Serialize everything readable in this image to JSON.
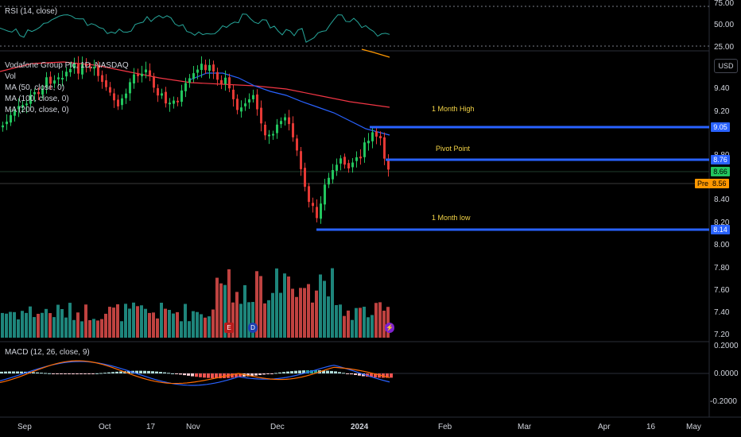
{
  "panes": {
    "rsi": {
      "title": "RSI (14, close)",
      "axis": [
        "75.00",
        "50.00",
        "25.00"
      ]
    },
    "price": {
      "symbol": "Vodafone Group Plc, 1D, NASDAQ",
      "indicators": [
        "Vol",
        "MA (50, close, 0)",
        "MA (100, close, 0)",
        "MA (200, close, 0)"
      ],
      "currency": "USD",
      "axis": [
        "9.40",
        "9.20",
        "8.80",
        "8.40",
        "8.20",
        "8.00",
        "7.80",
        "7.60",
        "7.40",
        "7.20"
      ],
      "annotations": {
        "high": "1 Month High",
        "pivot": "Pivot Point",
        "low": "1 Month low"
      },
      "levels": {
        "high": "9.05",
        "pivot": "8.76",
        "last": "8.66",
        "pre": "8.56",
        "low": "8.14"
      },
      "pre_label": "Pre",
      "events": [
        "E",
        "D",
        "⚡"
      ]
    },
    "macd": {
      "title": "MACD (12, 26, close, 9)",
      "axis": [
        "0.2000",
        "0.0000",
        "-0.2000"
      ]
    }
  },
  "time_axis": [
    "Sep",
    "Oct",
    "17",
    "Nov",
    "Dec",
    "2024",
    "Feb",
    "Mar",
    "Apr",
    "16",
    "May"
  ],
  "colors": {
    "up": "#26a69a",
    "down": "#ef5350",
    "bullish_candle": "#22c55e",
    "bearish_candle": "#e53935",
    "level_line": "#2962ff",
    "ma50": "#2962ff",
    "ma100": "#f23645",
    "rsi_line": "#26a69a",
    "annotation": "#f5d547",
    "pre_badge": "#ff9800"
  }
}
